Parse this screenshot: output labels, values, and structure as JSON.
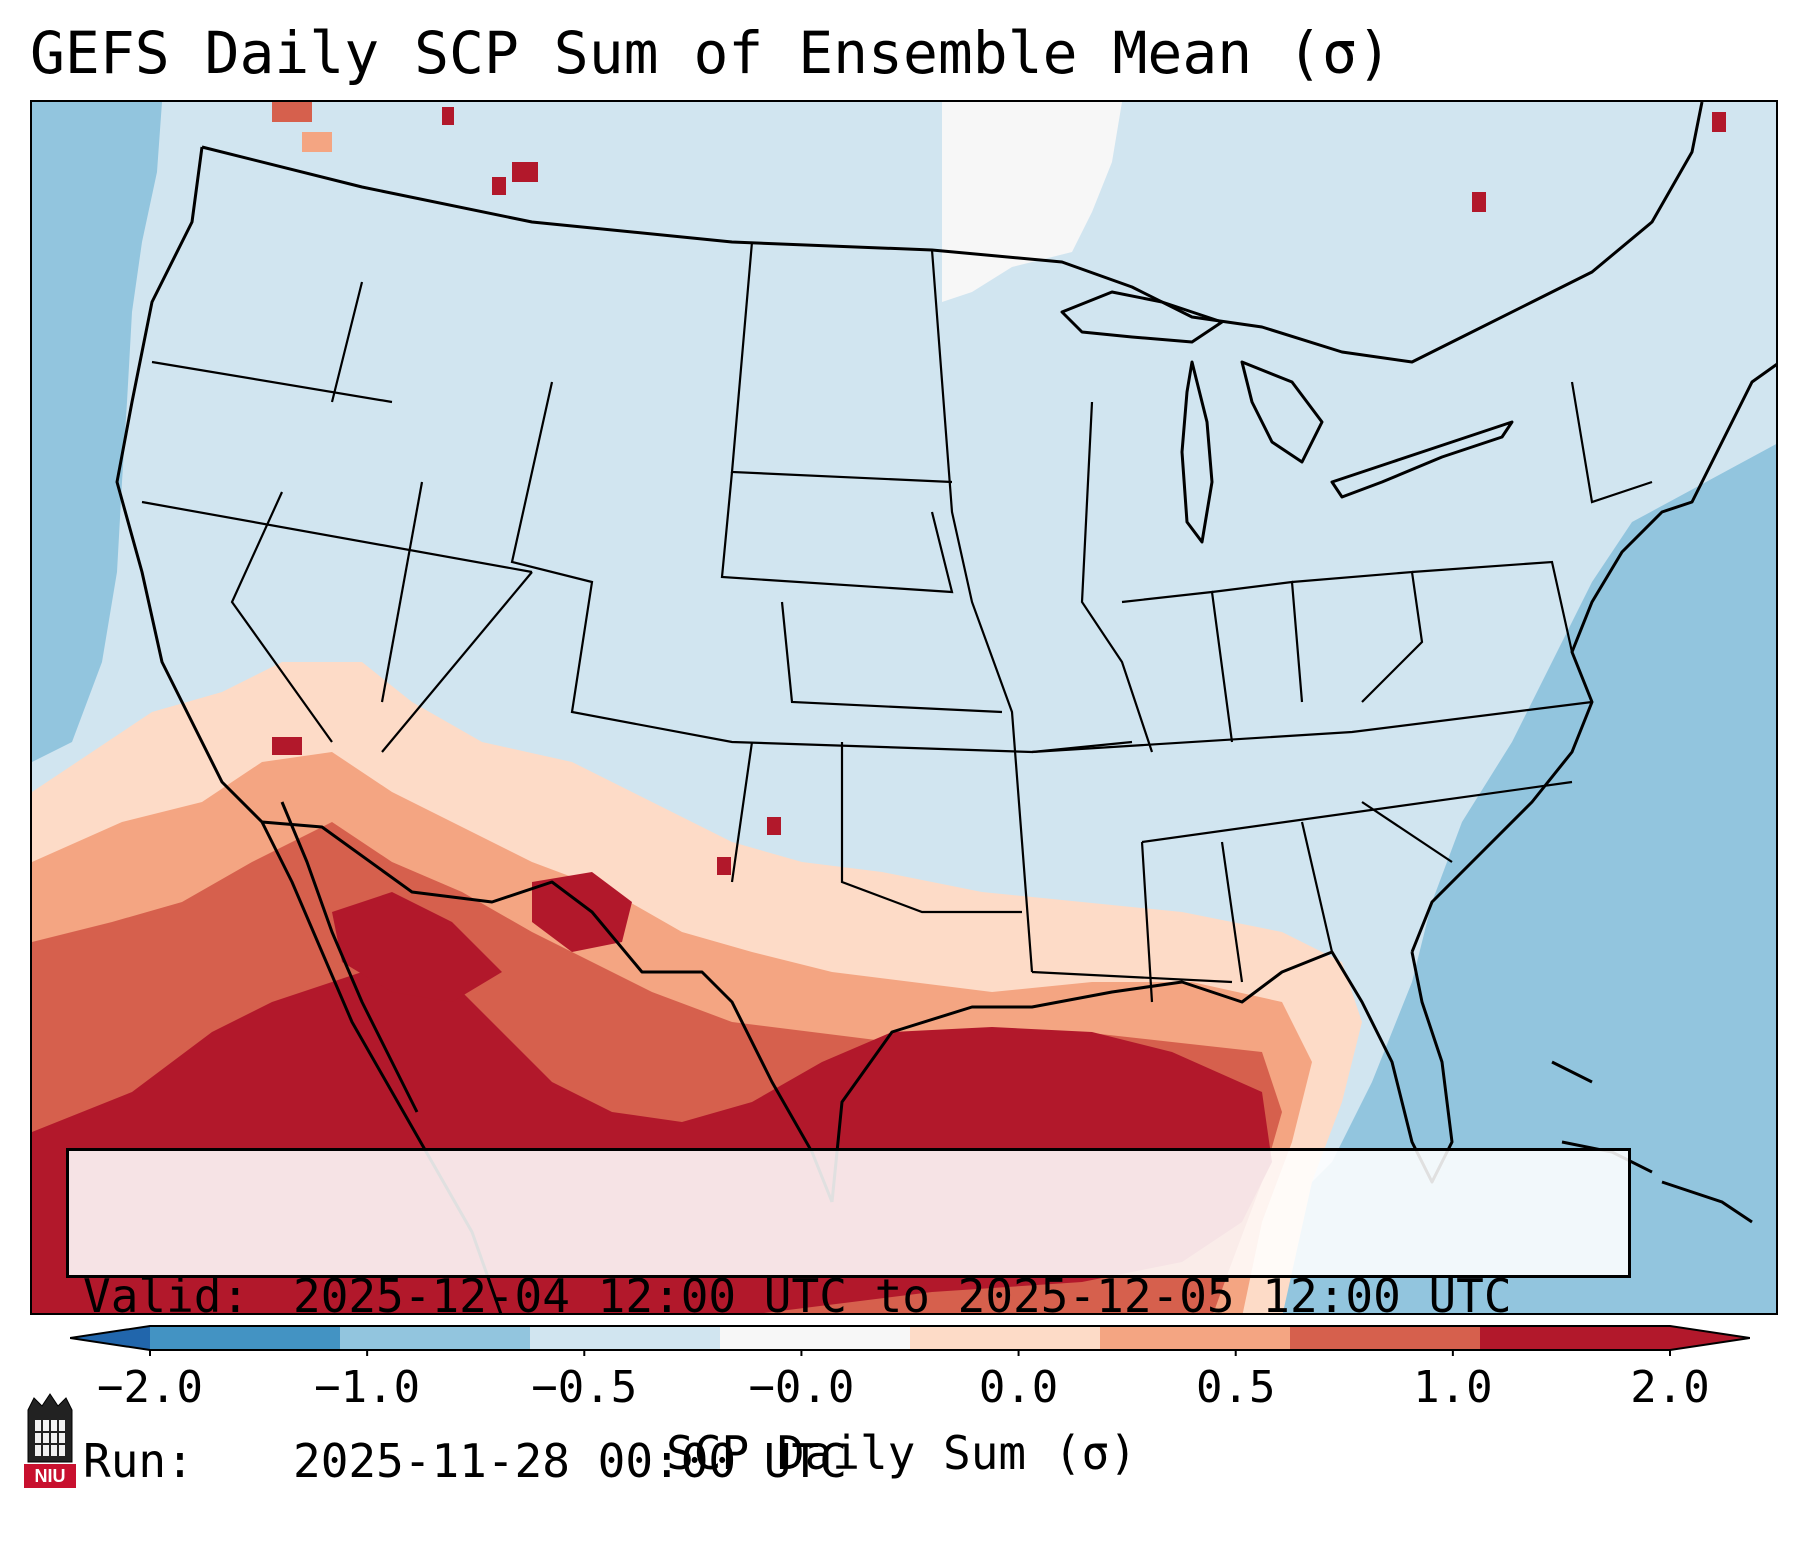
{
  "title": "GEFS Daily SCP Sum of Ensemble Mean (σ)",
  "info": {
    "valid_label": "Valid:",
    "valid_value": "2025-12-04 12:00 UTC to 2025-12-05 12:00 UTC",
    "run_label": "Run:",
    "run_value": "2025-11-28 00:00 UTC"
  },
  "colorbar": {
    "ticks": [
      "−2.0",
      "−1.0",
      "−0.5",
      "−0.0",
      "0.0",
      "0.5",
      "1.0",
      "2.0"
    ],
    "label": "SCP Daily Sum (σ)",
    "colors": [
      "#4393c3",
      "#92c5de",
      "#d1e5f0",
      "#f7f7f7",
      "#fddbc7",
      "#f4a582",
      "#d6604d",
      "#b2182b"
    ],
    "extend_low_color": "#2166ac",
    "extend_high_color": "#b2182b"
  },
  "logo": {
    "text": "NIU",
    "color": "#c8102e"
  }
}
